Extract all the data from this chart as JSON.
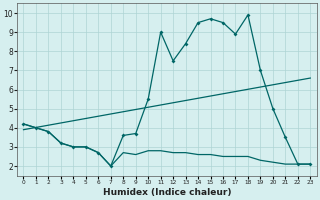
{
  "xlabel": "Humidex (Indice chaleur)",
  "x": [
    0,
    1,
    2,
    3,
    4,
    5,
    6,
    7,
    8,
    9,
    10,
    11,
    12,
    13,
    14,
    15,
    16,
    17,
    18,
    19,
    20,
    21,
    22,
    23
  ],
  "upper_line": [
    4.2,
    4.0,
    3.8,
    3.2,
    3.0,
    3.0,
    2.7,
    2.0,
    3.6,
    3.7,
    5.5,
    9.0,
    7.5,
    8.4,
    9.5,
    9.7,
    9.5,
    8.9,
    9.9,
    7.0,
    5.0,
    3.5,
    2.1,
    2.1
  ],
  "lower_line": [
    4.2,
    4.0,
    3.8,
    3.2,
    3.0,
    3.0,
    2.7,
    2.0,
    2.7,
    2.6,
    2.8,
    2.8,
    2.7,
    2.7,
    2.6,
    2.6,
    2.5,
    2.5,
    2.5,
    2.3,
    2.2,
    2.1,
    2.1,
    2.1
  ],
  "trend_line_x": [
    0,
    23
  ],
  "trend_line_y": [
    3.9,
    6.6
  ],
  "bg_color": "#d6efef",
  "line_color": "#006666",
  "grid_color": "#aed4d4",
  "ylim": [
    1.5,
    10.5
  ],
  "xlim": [
    -0.5,
    23.5
  ],
  "yticks": [
    2,
    3,
    4,
    5,
    6,
    7,
    8,
    9,
    10
  ]
}
